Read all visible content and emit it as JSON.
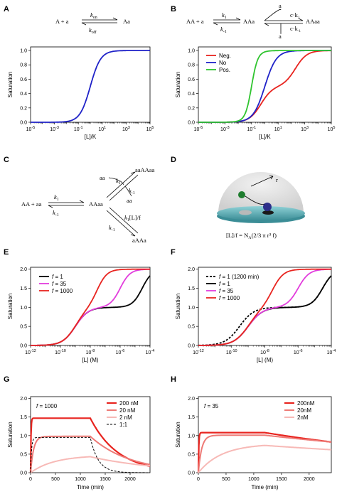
{
  "panels": {
    "A": {
      "label": "A"
    },
    "B": {
      "label": "B"
    },
    "C": {
      "label": "C"
    },
    "D": {
      "label": "D"
    },
    "E": {
      "label": "E"
    },
    "F": {
      "label": "F"
    },
    "G": {
      "label": "G"
    },
    "H": {
      "label": "H"
    }
  },
  "schemes": {
    "A": {
      "left": "A + a",
      "right": "Aa",
      "k_on": "k",
      "k_on_sub": "on",
      "k_off": "k",
      "k_off_sub": "off"
    },
    "B": {
      "left": "AA + a",
      "mid": "AAa",
      "right": "AAaa",
      "k1": "k",
      "k1_sub": "1",
      "km1": "k",
      "km1_sub": "-1",
      "a_top": "a",
      "a_bot": "a",
      "ck1": "c·k",
      "ck1_sub": "1",
      "ckm1": "c·k",
      "ckm1_sub": "-1"
    },
    "C": {
      "left": "AA + aa",
      "mid": "AAaa",
      "top": "aaAAaa",
      "bot": "aAAa",
      "aa_in": "aa",
      "aa_out": "aa",
      "k1": "k",
      "k1_sub": "1",
      "km1": "k",
      "km1_sub": "-1",
      "k1b": "k",
      "k1b_sub": "1",
      "km1b": "k",
      "km1b_sub": "-1",
      "k1Lf": "k",
      "k1Lf_sub": "1",
      "k1Lf_tail": "[L]/f",
      "km1c": "k",
      "km1c_sub": "-1"
    },
    "D": {
      "r": "r",
      "formula": "[L]/f = N",
      "formula_sub": "A",
      "formula_tail": "(2/3 π r³ f)"
    }
  },
  "chart_data": [
    {
      "id": "A",
      "type": "line",
      "xscale": "log",
      "xlim": [
        -5,
        5
      ],
      "ylim": [
        0,
        1.05
      ],
      "xticks": [
        -5,
        -3,
        -1,
        1,
        3,
        5
      ],
      "yticks": [
        "0.0",
        "0.2",
        "0.4",
        "0.6",
        "0.8",
        "1.0"
      ],
      "xlabel": "[L]/K",
      "ylabel": "Saturation",
      "series": [
        {
          "color": "#1f22c8",
          "model": "hill",
          "K": 1,
          "n": 1,
          "max": 1
        }
      ]
    },
    {
      "id": "B",
      "type": "line",
      "xscale": "log",
      "xlim": [
        -5,
        5
      ],
      "ylim": [
        0,
        1.05
      ],
      "xticks": [
        -5,
        -3,
        -1,
        1,
        3,
        5
      ],
      "yticks": [
        "0.0",
        "0.2",
        "0.4",
        "0.6",
        "0.8",
        "1.0"
      ],
      "xlabel": "[L]/K",
      "ylabel": "Saturation",
      "series": [
        {
          "name": "Neg.",
          "color": "#e8241f",
          "model": "twosite",
          "c": 0.01
        },
        {
          "name": "No",
          "color": "#1f22c8",
          "model": "twosite",
          "c": 1
        },
        {
          "name": "Pos.",
          "color": "#2ec42e",
          "model": "twosite",
          "c": 100
        }
      ]
    },
    {
      "id": "E",
      "type": "line",
      "xscale": "log",
      "xlim": [
        -12,
        -4
      ],
      "ylim": [
        0,
        2.05
      ],
      "xticks": [
        -12,
        -10,
        -8,
        -6,
        -4
      ],
      "yticks": [
        "0.0",
        "0.5",
        "1.0",
        "1.5",
        "2.0"
      ],
      "xlabel": "[L] (M)",
      "ylabel": "Saturation",
      "series": [
        {
          "name": "f = 1",
          "color": "#000000",
          "model": "bivalent",
          "K1": 1e-09,
          "K2": 3e-05,
          "n2": 1.3
        },
        {
          "name": "f = 35",
          "color": "#e23ddc",
          "model": "bivalent",
          "K1": 1e-09,
          "K2": 1e-06,
          "n2": 1.3
        },
        {
          "name": "f = 1000",
          "color": "#e8241f",
          "model": "bivalent",
          "K1": 1e-09,
          "K2": 3e-08,
          "n2": 1.3
        }
      ]
    },
    {
      "id": "F",
      "type": "line",
      "xscale": "log",
      "xlim": [
        -12,
        -4
      ],
      "ylim": [
        0,
        2.05
      ],
      "xticks": [
        -12,
        -10,
        -8,
        -6,
        -4
      ],
      "yticks": [
        "0.0",
        "0.5",
        "1.0",
        "1.5",
        "2.0"
      ],
      "xlabel": "[L] (M)",
      "ylabel": "Saturation",
      "series": [
        {
          "name": "f = 1 (1200 min)",
          "color": "#000000",
          "dash": "3,2",
          "model": "bivalent",
          "K1": 3e-10,
          "K2": 3e-05,
          "n2": 1.3
        },
        {
          "name": "f = 1",
          "color": "#000000",
          "model": "bivalent",
          "K1": 1e-09,
          "K2": 3e-05,
          "n2": 1.3
        },
        {
          "name": "f = 35",
          "color": "#e23ddc",
          "model": "bivalent",
          "K1": 1e-09,
          "K2": 1e-06,
          "n2": 1.3
        },
        {
          "name": "f = 1000",
          "color": "#e8241f",
          "model": "bivalent",
          "K1": 1e-09,
          "K2": 3e-08,
          "n2": 1.3
        }
      ]
    },
    {
      "id": "G",
      "type": "line",
      "xlim": [
        0,
        2400
      ],
      "ylim": [
        0,
        2.05
      ],
      "xticks": [
        0,
        500,
        1000,
        1500,
        2000
      ],
      "yticks": [
        "0.0",
        "0.5",
        "1.0",
        "1.5",
        "2.0"
      ],
      "xlabel": "Time (min)",
      "ylabel": "Saturation",
      "annotation": "f = 1000",
      "series": [
        {
          "name": "200 nM",
          "color": "#e8241f",
          "width": 2.2,
          "model": "kinetic",
          "plateau": 1.47,
          "tau": 8,
          "tstop": 1200,
          "tdecay": 560
        },
        {
          "name": "20 nM",
          "color": "#ee7a76",
          "width": 2,
          "model": "kinetic",
          "plateau": 0.98,
          "tau": 60,
          "tstop": 1200,
          "tdecay": 800
        },
        {
          "name": "2 nM",
          "color": "#f7b9b6",
          "width": 2,
          "model": "kinetic",
          "plateau": 0.47,
          "tau": 480,
          "tstop": 1200,
          "tdecay": 1400
        },
        {
          "name": "1:1",
          "color": "#000000",
          "dash": "3,2",
          "width": 1,
          "model": "kinetic",
          "plateau": 0.95,
          "tau": 20,
          "tstop": 1200,
          "tdecay": 160
        }
      ]
    },
    {
      "id": "H",
      "type": "line",
      "xlim": [
        0,
        2400
      ],
      "ylim": [
        0,
        2.05
      ],
      "xticks": [
        0,
        500,
        1000,
        1500,
        2000
      ],
      "yticks": [
        "0.0",
        "0.5",
        "1.0",
        "1.5",
        "2.0"
      ],
      "xlabel": "Time (min)",
      "ylabel": "Saturation",
      "annotation": "f = 35",
      "series": [
        {
          "name": "200nM",
          "color": "#e8241f",
          "width": 2.2,
          "model": "kinetic",
          "plateau": 1.08,
          "tau": 8,
          "tstop": 1200,
          "tdecay": 4500
        },
        {
          "name": "20nM",
          "color": "#ee7a76",
          "width": 2,
          "model": "kinetic",
          "plateau": 1.01,
          "tau": 60,
          "tstop": 1200,
          "tdecay": 6000
        },
        {
          "name": "2nM",
          "color": "#f7b9b6",
          "width": 2,
          "model": "kinetic",
          "plateau": 0.78,
          "tau": 420,
          "tstop": 1200,
          "tdecay": 7000
        }
      ]
    }
  ]
}
